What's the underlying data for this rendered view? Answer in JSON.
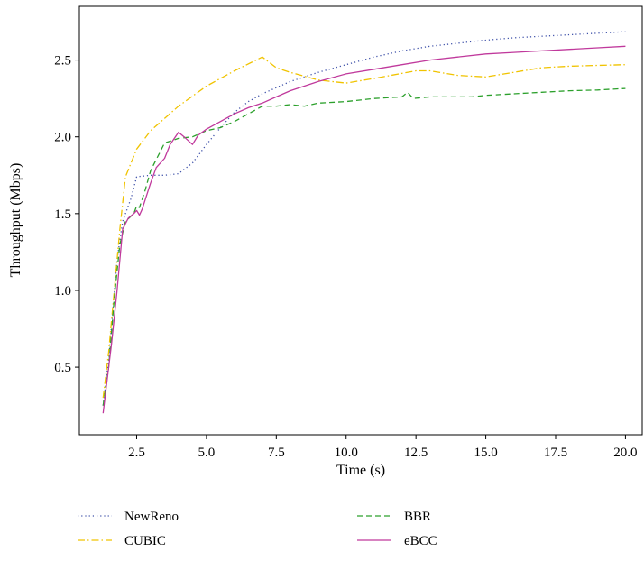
{
  "chart_data": {
    "type": "line",
    "title": "",
    "xlabel": "Time (s)",
    "ylabel": "Throughput (Mbps)",
    "xlim": [
      0.45,
      20.6
    ],
    "ylim": [
      0.06,
      2.85
    ],
    "xticks": [
      2.5,
      5.0,
      7.5,
      10.0,
      12.5,
      15.0,
      17.5,
      20.0
    ],
    "xtick_labels": [
      "2.5",
      "5.0",
      "7.5",
      "10.0",
      "12.5",
      "15.0",
      "17.5",
      "20.0"
    ],
    "yticks": [
      0.5,
      1.0,
      1.5,
      2.0,
      2.5
    ],
    "ytick_labels": [
      "0.5",
      "1.0",
      "1.5",
      "2.0",
      "2.5"
    ],
    "grid": false,
    "legend_position": "bottom",
    "series": [
      {
        "name": "NewReno",
        "color": "#3c4fa8",
        "dash": "dotted",
        "points": [
          [
            1.3,
            0.25
          ],
          [
            1.5,
            0.55
          ],
          [
            1.8,
            1.2
          ],
          [
            2.0,
            1.45
          ],
          [
            2.3,
            1.6
          ],
          [
            2.5,
            1.74
          ],
          [
            3.0,
            1.75
          ],
          [
            3.5,
            1.75
          ],
          [
            4.0,
            1.76
          ],
          [
            4.5,
            1.83
          ],
          [
            5.0,
            1.95
          ],
          [
            5.5,
            2.06
          ],
          [
            6.0,
            2.16
          ],
          [
            6.5,
            2.23
          ],
          [
            7.0,
            2.28
          ],
          [
            8.0,
            2.36
          ],
          [
            9.0,
            2.42
          ],
          [
            10.0,
            2.47
          ],
          [
            11.0,
            2.52
          ],
          [
            12.0,
            2.56
          ],
          [
            13.0,
            2.59
          ],
          [
            14.0,
            2.61
          ],
          [
            15.0,
            2.63
          ],
          [
            16.0,
            2.645
          ],
          [
            17.0,
            2.655
          ],
          [
            18.0,
            2.665
          ],
          [
            19.0,
            2.675
          ],
          [
            20.0,
            2.685
          ]
        ]
      },
      {
        "name": "CUBIC",
        "color": "#f0c300",
        "dash": "dashdot",
        "points": [
          [
            1.3,
            0.3
          ],
          [
            1.5,
            0.6
          ],
          [
            1.7,
            1.0
          ],
          [
            1.9,
            1.4
          ],
          [
            2.1,
            1.74
          ],
          [
            2.5,
            1.92
          ],
          [
            3.0,
            2.04
          ],
          [
            3.5,
            2.12
          ],
          [
            4.0,
            2.2
          ],
          [
            5.0,
            2.33
          ],
          [
            6.0,
            2.43
          ],
          [
            7.0,
            2.52
          ],
          [
            7.5,
            2.45
          ],
          [
            8.0,
            2.42
          ],
          [
            9.0,
            2.37
          ],
          [
            10.0,
            2.35
          ],
          [
            11.0,
            2.38
          ],
          [
            12.5,
            2.43
          ],
          [
            13.0,
            2.43
          ],
          [
            14.0,
            2.4
          ],
          [
            15.0,
            2.39
          ],
          [
            16.0,
            2.42
          ],
          [
            17.0,
            2.45
          ],
          [
            18.0,
            2.46
          ],
          [
            19.0,
            2.465
          ],
          [
            20.0,
            2.47
          ]
        ]
      },
      {
        "name": "BBR",
        "color": "#2ca02c",
        "dash": "dashed",
        "points": [
          [
            1.3,
            0.25
          ],
          [
            1.5,
            0.5
          ],
          [
            1.7,
            0.95
          ],
          [
            1.9,
            1.3
          ],
          [
            2.1,
            1.45
          ],
          [
            2.4,
            1.5
          ],
          [
            2.5,
            1.55
          ],
          [
            2.6,
            1.54
          ],
          [
            2.8,
            1.65
          ],
          [
            3.0,
            1.78
          ],
          [
            3.5,
            1.96
          ],
          [
            4.0,
            1.99
          ],
          [
            4.5,
            2.0
          ],
          [
            5.0,
            2.04
          ],
          [
            5.5,
            2.06
          ],
          [
            6.0,
            2.1
          ],
          [
            6.5,
            2.15
          ],
          [
            7.0,
            2.2
          ],
          [
            7.5,
            2.2
          ],
          [
            8.0,
            2.21
          ],
          [
            8.5,
            2.2
          ],
          [
            9.0,
            2.22
          ],
          [
            10.0,
            2.23
          ],
          [
            11.0,
            2.25
          ],
          [
            12.0,
            2.26
          ],
          [
            12.2,
            2.29
          ],
          [
            12.4,
            2.25
          ],
          [
            13.0,
            2.26
          ],
          [
            14.0,
            2.26
          ],
          [
            14.5,
            2.26
          ],
          [
            15.0,
            2.27
          ],
          [
            16.0,
            2.28
          ],
          [
            17.0,
            2.29
          ],
          [
            18.0,
            2.3
          ],
          [
            19.0,
            2.305
          ],
          [
            20.0,
            2.315
          ]
        ]
      },
      {
        "name": "eBCC",
        "color": "#c0399c",
        "dash": "solid",
        "points": [
          [
            1.3,
            0.2
          ],
          [
            1.4,
            0.35
          ],
          [
            1.6,
            0.65
          ],
          [
            1.8,
            1.0
          ],
          [
            2.0,
            1.4
          ],
          [
            2.2,
            1.47
          ],
          [
            2.4,
            1.5
          ],
          [
            2.5,
            1.52
          ],
          [
            2.6,
            1.49
          ],
          [
            2.7,
            1.53
          ],
          [
            3.0,
            1.7
          ],
          [
            3.2,
            1.8
          ],
          [
            3.5,
            1.86
          ],
          [
            3.7,
            1.95
          ],
          [
            4.0,
            2.03
          ],
          [
            4.2,
            2.0
          ],
          [
            4.5,
            1.95
          ],
          [
            4.7,
            2.01
          ],
          [
            5.0,
            2.05
          ],
          [
            5.5,
            2.1
          ],
          [
            6.0,
            2.15
          ],
          [
            6.5,
            2.19
          ],
          [
            7.0,
            2.22
          ],
          [
            7.5,
            2.26
          ],
          [
            8.0,
            2.3
          ],
          [
            9.0,
            2.36
          ],
          [
            10.0,
            2.41
          ],
          [
            11.0,
            2.44
          ],
          [
            12.0,
            2.47
          ],
          [
            13.0,
            2.5
          ],
          [
            14.0,
            2.52
          ],
          [
            15.0,
            2.54
          ],
          [
            16.0,
            2.55
          ],
          [
            17.0,
            2.56
          ],
          [
            18.0,
            2.57
          ],
          [
            19.0,
            2.58
          ],
          [
            20.0,
            2.59
          ]
        ]
      }
    ]
  }
}
